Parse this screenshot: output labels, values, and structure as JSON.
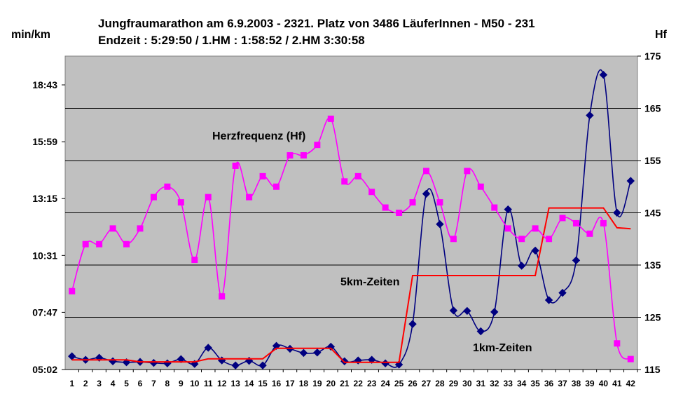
{
  "chart_data": {
    "type": "line",
    "title_line1": "Jungfraumarathon am 6.9.2003  -  2321. Platz von 3486 LäuferInnen - M50 - 231",
    "title_line2": "Endzeit : 5:29:50  / 1.HM : 1:58:52  / 2.HM  3:30:58",
    "ylabel_left": "min/km",
    "ylabel_right": "Hf",
    "x": [
      1,
      2,
      3,
      4,
      5,
      6,
      7,
      8,
      9,
      10,
      11,
      12,
      13,
      14,
      15,
      16,
      17,
      18,
      19,
      20,
      21,
      22,
      23,
      24,
      25,
      26,
      27,
      28,
      29,
      30,
      31,
      32,
      33,
      34,
      35,
      36,
      37,
      38,
      39,
      40,
      41,
      42
    ],
    "left_axis": {
      "unit": "min/km",
      "range_min": [
        5.0333,
        20.1
      ],
      "ticks": [
        "05:02",
        "07:47",
        "10:31",
        "13:15",
        "15:59",
        "18:43"
      ]
    },
    "right_axis": {
      "unit": "Hf",
      "range": [
        115,
        175
      ],
      "ticks": [
        "115",
        "125",
        "135",
        "145",
        "155",
        "165",
        "175"
      ]
    },
    "series": [
      {
        "name": "1km-Zeiten",
        "axis": "left",
        "color": "#000080",
        "marker": "diamond",
        "values_min": [
          5.67,
          5.5,
          5.6,
          5.43,
          5.38,
          5.4,
          5.35,
          5.33,
          5.53,
          5.3,
          6.08,
          5.47,
          5.23,
          5.45,
          5.23,
          6.17,
          6.03,
          5.83,
          5.85,
          6.13,
          5.43,
          5.47,
          5.5,
          5.33,
          5.27,
          7.22,
          13.48,
          12.02,
          7.87,
          7.85,
          6.87,
          7.8,
          12.73,
          10.02,
          10.75,
          8.37,
          8.72,
          10.28,
          17.25,
          19.2,
          12.57,
          14.1
        ]
      },
      {
        "name": "5km-Zeiten",
        "axis": "left",
        "color": "#ff0000",
        "marker": "none",
        "values_min": [
          5.5,
          5.5,
          5.5,
          5.5,
          5.5,
          5.4,
          5.4,
          5.4,
          5.4,
          5.4,
          5.55,
          5.55,
          5.55,
          5.55,
          5.55,
          6.05,
          6.05,
          6.05,
          6.05,
          6.05,
          5.38,
          5.38,
          5.38,
          5.38,
          5.38,
          9.55,
          9.55,
          9.55,
          9.55,
          9.55,
          9.55,
          9.55,
          9.55,
          9.55,
          9.55,
          12.8,
          12.8,
          12.8,
          12.8,
          12.8,
          11.85,
          11.8
        ]
      },
      {
        "name": "Herzfrequenz (Hf)",
        "axis": "right",
        "color": "#ff00ff",
        "marker": "square",
        "values": [
          130,
          139,
          139,
          142,
          139,
          142,
          148,
          150,
          147,
          136,
          148,
          129,
          154,
          148,
          152,
          150,
          156,
          156,
          158,
          163,
          151,
          152,
          149,
          146,
          145,
          147,
          153,
          147,
          140,
          153,
          150,
          146,
          142,
          140,
          142,
          140,
          144,
          143,
          141,
          143,
          120,
          117
        ]
      }
    ]
  }
}
